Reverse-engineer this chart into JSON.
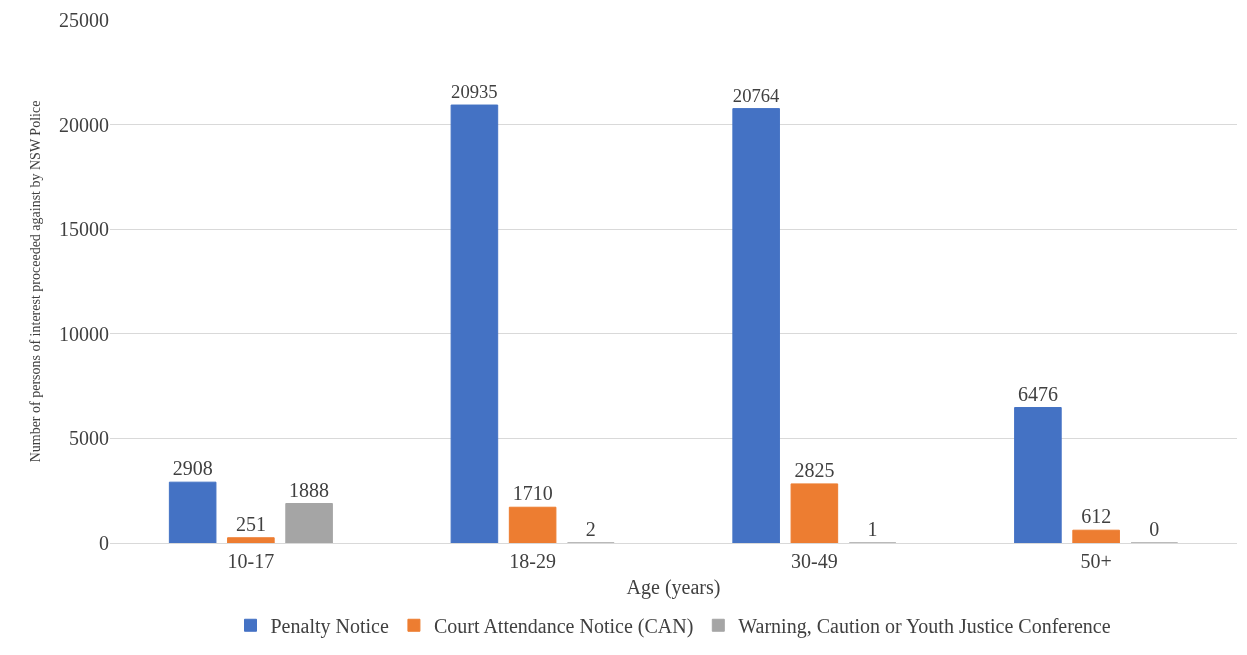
{
  "chart_data": {
    "type": "bar",
    "xlabel": "Age (years)",
    "ylabel": "Number of persons of interest proceeded against by NSW Police",
    "categories": [
      "10-17",
      "18-29",
      "30-49",
      "50+"
    ],
    "series": [
      {
        "name": "Penalty Notice",
        "color": "#4472c4",
        "values": [
          2908,
          20935,
          20764,
          6476
        ]
      },
      {
        "name": "Court Attendance Notice (CAN)",
        "color": "#ed7d31",
        "values": [
          251,
          1710,
          2825,
          612
        ]
      },
      {
        "name": "Warning, Caution or Youth Justice Conference",
        "color": "#a5a5a5",
        "values": [
          1888,
          2,
          1,
          0
        ]
      }
    ],
    "ylim": [
      0,
      25000
    ],
    "yticks": [
      0,
      5000,
      10000,
      15000,
      20000,
      25000
    ],
    "grid": "y",
    "legend": "bottom",
    "data_labels": true
  }
}
